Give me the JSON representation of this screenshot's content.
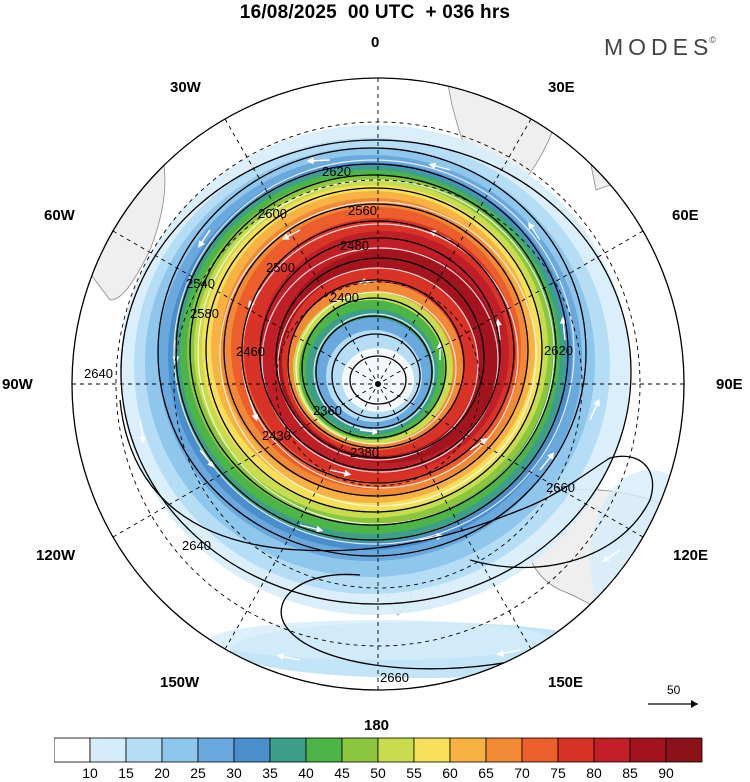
{
  "header": {
    "title": "16/08/2025  00 UTC  + 036 hrs",
    "brand": "MODES",
    "brand_mark": "©"
  },
  "map": {
    "projection": "south-polar-stereographic",
    "longitude_labels": {
      "top": "0",
      "bottom": "180",
      "left": "90W",
      "right": "90E",
      "upper_left_30": "30W",
      "upper_right_30": "30E",
      "upper_left_60": "60W",
      "upper_right_60": "60E",
      "lower_left_120": "120W",
      "lower_right_120": "120E",
      "lower_left_150": "150W",
      "lower_right_150": "150E"
    },
    "contour_field": "geopotential height",
    "contour_labels": [
      "2620",
      "2600",
      "2580",
      "2560",
      "2540",
      "2500",
      "2480",
      "2460",
      "2430",
      "2400",
      "2380",
      "2360",
      "2640",
      "2660",
      "2620",
      "2640",
      "2660"
    ],
    "wind_reference_label": "50"
  },
  "colorbar": {
    "ticks": [
      "10",
      "15",
      "20",
      "25",
      "30",
      "35",
      "40",
      "45",
      "50",
      "55",
      "60",
      "65",
      "70",
      "75",
      "80",
      "85",
      "90"
    ],
    "colors": [
      "#ffffff",
      "#d6ecfb",
      "#b5ddf6",
      "#8fc6ec",
      "#69a9de",
      "#4a8fcc",
      "#3d9e8a",
      "#4db548",
      "#8cc63f",
      "#c9dc4d",
      "#f6e05a",
      "#f7b243",
      "#f28a35",
      "#ec5f2c",
      "#d93327",
      "#c11f27",
      "#a3141e",
      "#8a1218"
    ]
  }
}
